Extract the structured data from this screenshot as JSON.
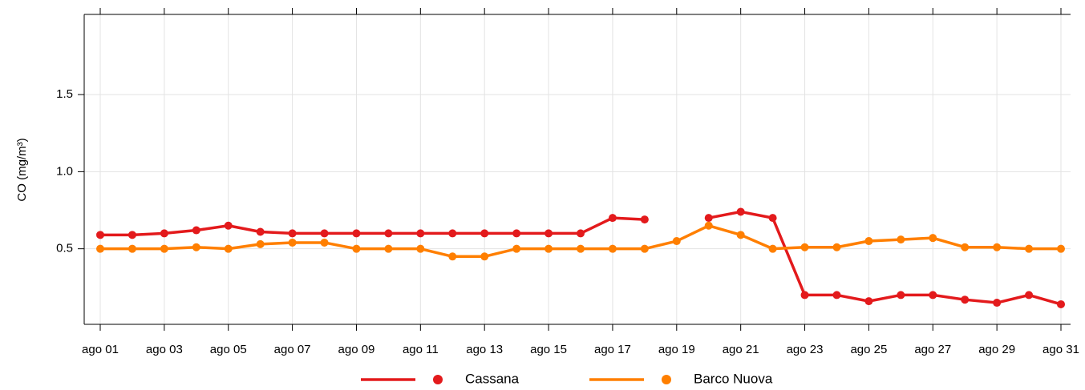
{
  "chart_data": {
    "type": "line",
    "y_label": "CO (mg/m³)",
    "categories": [
      "ago 01",
      null,
      "ago 03",
      null,
      "ago 05",
      null,
      "ago 07",
      null,
      "ago 09",
      null,
      "ago 11",
      null,
      "ago 13",
      null,
      "ago 15",
      null,
      "ago 17",
      null,
      "ago 19",
      null,
      "ago 21",
      null,
      "ago 23",
      null,
      "ago 25",
      null,
      "ago 27",
      null,
      "ago 29",
      null,
      "ago 31"
    ],
    "series": [
      {
        "name": "Cassana",
        "color": "#e31a1c",
        "values": [
          0.59,
          0.59,
          0.6,
          0.62,
          0.65,
          0.61,
          0.6,
          0.6,
          0.6,
          0.6,
          0.6,
          0.6,
          0.6,
          0.6,
          0.6,
          0.6,
          0.7,
          0.69,
          null,
          0.7,
          0.74,
          0.7,
          0.2,
          0.2,
          0.16,
          0.2,
          0.2,
          0.17,
          0.15,
          0.2,
          0.14
        ]
      },
      {
        "name": "Barco Nuova",
        "color": "#ff7f00",
        "values": [
          0.5,
          0.5,
          0.5,
          0.51,
          0.5,
          0.53,
          0.54,
          0.54,
          0.5,
          0.5,
          0.5,
          0.45,
          0.45,
          0.5,
          0.5,
          0.5,
          0.5,
          0.5,
          0.55,
          0.65,
          0.59,
          0.5,
          0.51,
          0.51,
          0.55,
          0.56,
          0.57,
          0.51,
          0.51,
          0.5,
          0.5
        ]
      }
    ],
    "ylim": [
      0.01,
      2.02
    ],
    "yticks": [
      0.5,
      {
        "value": 1,
        "label": "1.0"
      },
      1.5
    ],
    "grid": true,
    "legend": "bottom"
  }
}
